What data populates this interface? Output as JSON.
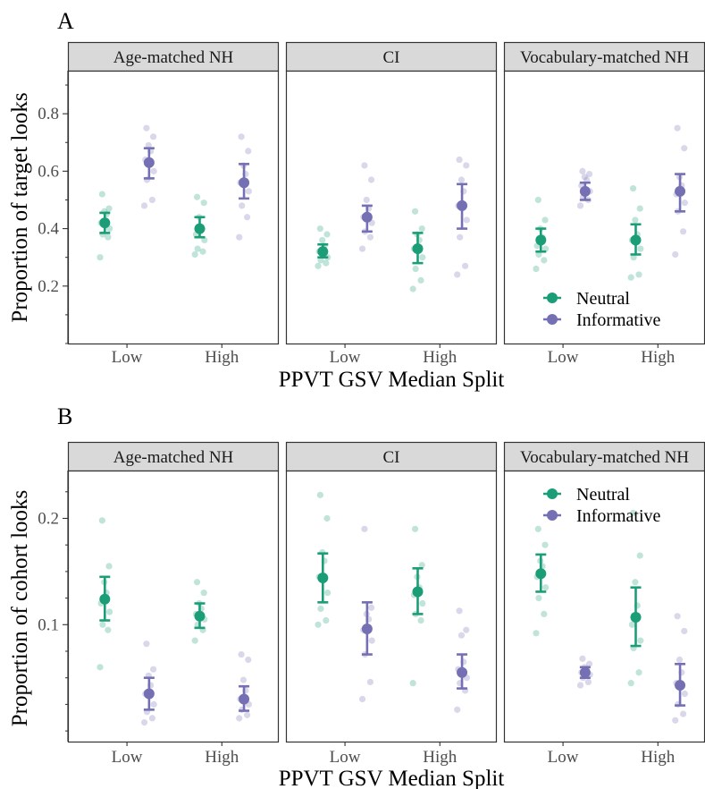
{
  "colors": {
    "Neutral": "#1b9e77",
    "Informative": "#7570b3",
    "strip_fill": "#d9d9d9"
  },
  "chart_data": [
    {
      "panel_label": "A",
      "type": "scatter",
      "facets": [
        "Age-matched NH",
        "CI",
        "Vocabulary-matched NH"
      ],
      "categories": [
        "Low",
        "High"
      ],
      "xlabel": "PPVT GSV Median Split",
      "ylabel": "Proportion of target looks",
      "ylim": [
        0.0,
        0.95
      ],
      "yticks": [
        "0.2",
        "0.4",
        "0.6",
        "0.8"
      ],
      "legend": {
        "facet_index": 2,
        "position": "bottom-right",
        "entries": [
          "Neutral",
          "Informative"
        ]
      },
      "series": [
        {
          "name": "Neutral",
          "facets": [
            {
              "means": [
                0.42,
                0.4
              ],
              "ci": [
                [
                  0.385,
                  0.455
                ],
                [
                  0.37,
                  0.44
                ]
              ],
              "points": [
                [
                  0.3,
                  0.37,
                  0.38,
                  0.4,
                  0.42,
                  0.45,
                  0.46,
                  0.47,
                  0.52
                ],
                [
                  0.31,
                  0.32,
                  0.33,
                  0.36,
                  0.38,
                  0.4,
                  0.44,
                  0.49,
                  0.51
                ]
              ]
            },
            {
              "means": [
                0.32,
                0.33
              ],
              "ci": [
                [
                  0.3,
                  0.345
                ],
                [
                  0.28,
                  0.385
                ]
              ],
              "points": [
                [
                  0.27,
                  0.28,
                  0.29,
                  0.3,
                  0.32,
                  0.34,
                  0.36,
                  0.38,
                  0.4
                ],
                [
                  0.19,
                  0.22,
                  0.26,
                  0.3,
                  0.33,
                  0.36,
                  0.38,
                  0.4,
                  0.46
                ]
              ]
            },
            {
              "means": [
                0.36,
                0.36
              ],
              "ci": [
                [
                  0.32,
                  0.4
                ],
                [
                  0.31,
                  0.415
                ]
              ],
              "points": [
                [
                  0.26,
                  0.29,
                  0.31,
                  0.33,
                  0.34,
                  0.37,
                  0.4,
                  0.43,
                  0.5
                ],
                [
                  0.23,
                  0.24,
                  0.3,
                  0.33,
                  0.36,
                  0.38,
                  0.43,
                  0.47,
                  0.54
                ]
              ]
            }
          ]
        },
        {
          "name": "Informative",
          "facets": [
            {
              "means": [
                0.63,
                0.56
              ],
              "ci": [
                [
                  0.575,
                  0.68
                ],
                [
                  0.505,
                  0.625
                ]
              ],
              "points": [
                [
                  0.48,
                  0.5,
                  0.57,
                  0.6,
                  0.64,
                  0.67,
                  0.69,
                  0.72,
                  0.75
                ],
                [
                  0.37,
                  0.44,
                  0.48,
                  0.53,
                  0.56,
                  0.59,
                  0.62,
                  0.67,
                  0.72
                ]
              ]
            },
            {
              "means": [
                0.44,
                0.48
              ],
              "ci": [
                [
                  0.39,
                  0.48
                ],
                [
                  0.4,
                  0.555
                ]
              ],
              "points": [
                [
                  0.33,
                  0.37,
                  0.39,
                  0.42,
                  0.44,
                  0.47,
                  0.5,
                  0.57,
                  0.62
                ],
                [
                  0.24,
                  0.27,
                  0.37,
                  0.43,
                  0.48,
                  0.53,
                  0.57,
                  0.62,
                  0.64
                ]
              ]
            },
            {
              "means": [
                0.53,
                0.53
              ],
              "ci": [
                [
                  0.5,
                  0.56
                ],
                [
                  0.46,
                  0.59
                ]
              ],
              "points": [
                [
                  0.48,
                  0.5,
                  0.51,
                  0.53,
                  0.55,
                  0.57,
                  0.58,
                  0.59,
                  0.6
                ],
                [
                  0.31,
                  0.39,
                  0.46,
                  0.49,
                  0.52,
                  0.55,
                  0.58,
                  0.68,
                  0.75
                ]
              ]
            }
          ]
        }
      ]
    },
    {
      "panel_label": "B",
      "type": "scatter",
      "facets": [
        "Age-matched NH",
        "CI",
        "Vocabulary-matched NH"
      ],
      "categories": [
        "Low",
        "High"
      ],
      "xlabel": "PPVT GSV Median Split",
      "ylabel": "Proportion of cohort looks",
      "ylim": [
        -0.01,
        0.245
      ],
      "yticks": [
        "0.1",
        "0.2"
      ],
      "legend": {
        "facet_index": 2,
        "position": "top-right",
        "entries": [
          "Neutral",
          "Informative"
        ]
      },
      "series": [
        {
          "name": "Neutral",
          "facets": [
            {
              "means": [
                0.124,
                0.108
              ],
              "ci": [
                [
                  0.104,
                  0.145
                ],
                [
                  0.097,
                  0.12
                ]
              ],
              "points": [
                [
                  0.06,
                  0.095,
                  0.1,
                  0.112,
                  0.12,
                  0.13,
                  0.14,
                  0.155,
                  0.198
                ],
                [
                  0.085,
                  0.095,
                  0.1,
                  0.105,
                  0.11,
                  0.115,
                  0.12,
                  0.13,
                  0.14
                ]
              ]
            },
            {
              "means": [
                0.144,
                0.131
              ],
              "ci": [
                [
                  0.121,
                  0.167
                ],
                [
                  0.11,
                  0.153
                ]
              ],
              "points": [
                [
                  0.1,
                  0.104,
                  0.115,
                  0.13,
                  0.145,
                  0.16,
                  0.168,
                  0.2,
                  0.222
                ],
                [
                  0.045,
                  0.104,
                  0.11,
                  0.12,
                  0.128,
                  0.135,
                  0.145,
                  0.156,
                  0.19
                ]
              ]
            },
            {
              "means": [
                0.148,
                0.107
              ],
              "ci": [
                [
                  0.131,
                  0.166
                ],
                [
                  0.08,
                  0.135
                ]
              ],
              "points": [
                [
                  0.092,
                  0.11,
                  0.125,
                  0.135,
                  0.145,
                  0.155,
                  0.16,
                  0.175,
                  0.19
                ],
                [
                  0.045,
                  0.055,
                  0.078,
                  0.085,
                  0.1,
                  0.118,
                  0.14,
                  0.165,
                  0.205
                ]
              ]
            }
          ]
        },
        {
          "name": "Informative",
          "facets": [
            {
              "means": [
                0.035,
                0.03
              ],
              "ci": [
                [
                  0.02,
                  0.05
                ],
                [
                  0.019,
                  0.042
                ]
              ],
              "points": [
                [
                  0.008,
                  0.012,
                  0.018,
                  0.025,
                  0.035,
                  0.043,
                  0.052,
                  0.058,
                  0.082
                ],
                [
                  0.012,
                  0.015,
                  0.02,
                  0.025,
                  0.03,
                  0.038,
                  0.048,
                  0.067,
                  0.072
                ]
              ]
            },
            {
              "means": [
                0.096,
                0.055
              ],
              "ci": [
                [
                  0.072,
                  0.121
                ],
                [
                  0.04,
                  0.072
                ]
              ],
              "points": [
                [
                  0.03,
                  0.046,
                  0.072,
                  0.085,
                  0.095,
                  0.105,
                  0.11,
                  0.116,
                  0.19
                ],
                [
                  0.02,
                  0.038,
                  0.045,
                  0.05,
                  0.058,
                  0.065,
                  0.09,
                  0.095,
                  0.113
                ]
              ]
            },
            {
              "means": [
                0.055,
                0.043
              ],
              "ci": [
                [
                  0.05,
                  0.06
                ],
                [
                  0.024,
                  0.063
                ]
              ],
              "points": [
                [
                  0.043,
                  0.046,
                  0.05,
                  0.053,
                  0.055,
                  0.058,
                  0.06,
                  0.063,
                  0.068
                ],
                [
                  0.01,
                  0.016,
                  0.025,
                  0.035,
                  0.045,
                  0.055,
                  0.067,
                  0.094,
                  0.108
                ]
              ]
            }
          ]
        }
      ]
    }
  ]
}
